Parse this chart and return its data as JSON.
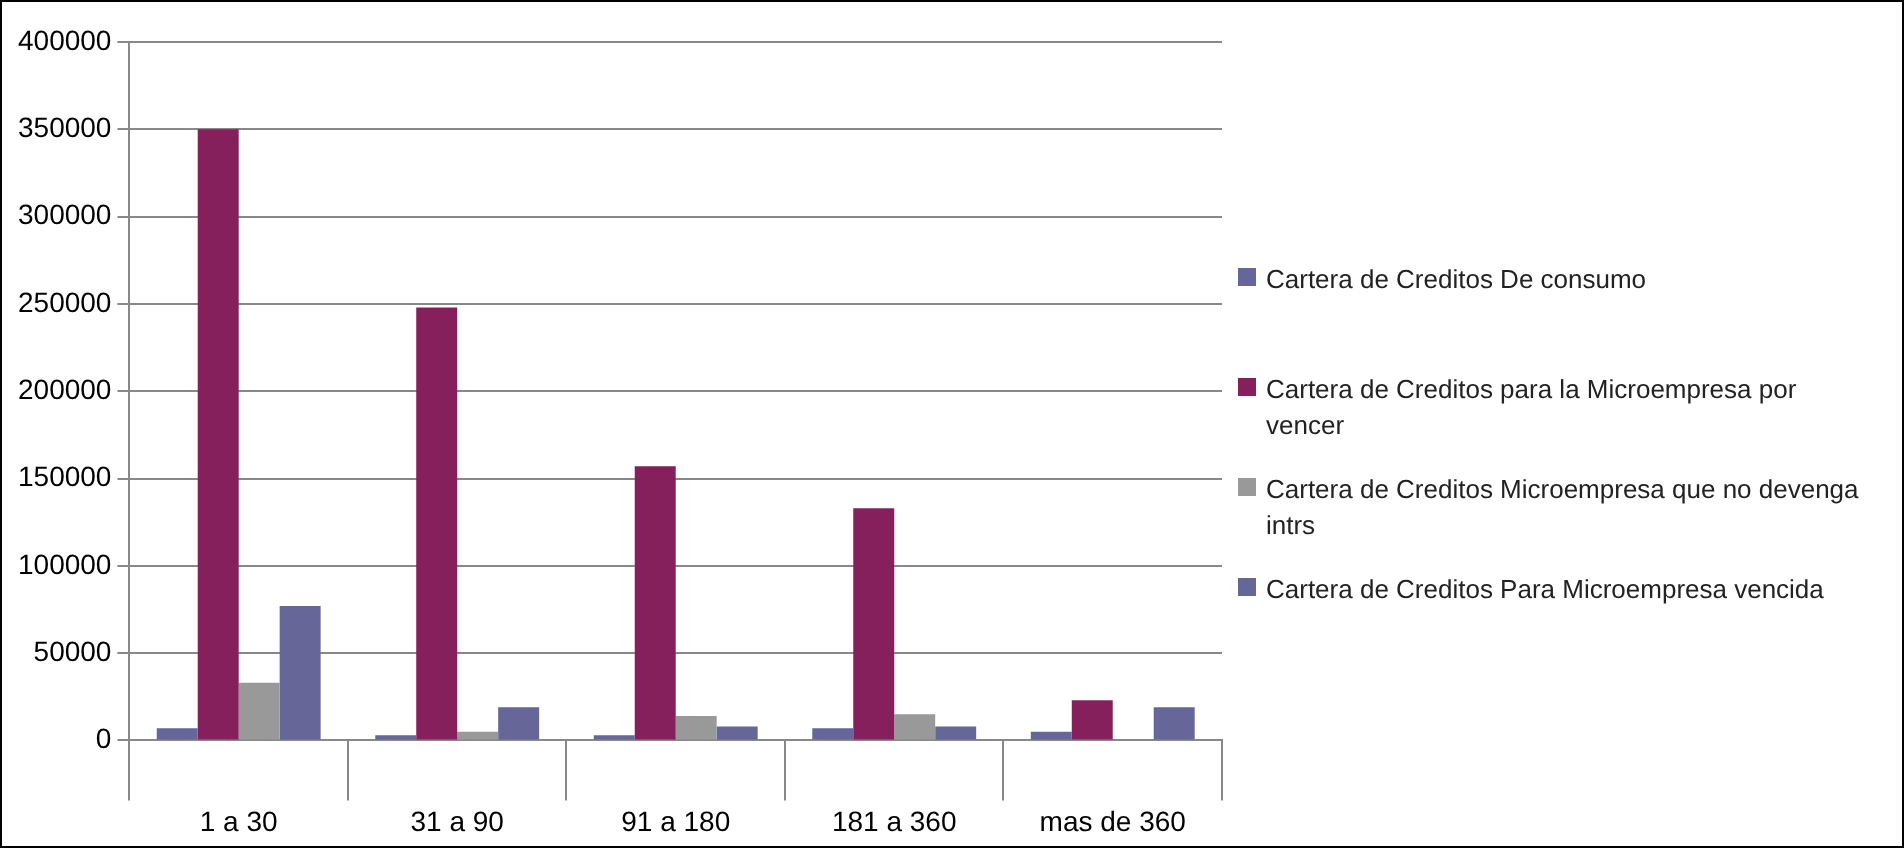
{
  "chart_data": {
    "type": "bar",
    "categories": [
      "1 a 30",
      "31 a 90",
      "91 a 180",
      "181 a 360",
      "mas de 360"
    ],
    "series": [
      {
        "name": "Cartera de Creditos De consumo",
        "color": "#66669a",
        "values": [
          7000,
          3000,
          3000,
          7000,
          5000
        ]
      },
      {
        "name": "Cartera de Creditos para la Microempresa por vencer",
        "color": "#85205d",
        "values": [
          350000,
          248000,
          157000,
          133000,
          23000
        ]
      },
      {
        "name": "Cartera de Creditos Microempresa que no devenga intrs",
        "color": "#999999",
        "values": [
          33000,
          5000,
          14000,
          15000,
          null
        ]
      },
      {
        "name": "Cartera de Creditos Para Microempresa vencida",
        "color": "#666699",
        "values": [
          77000,
          19000,
          8000,
          8000,
          19000
        ]
      }
    ],
    "ylim": [
      0,
      400000
    ],
    "yticks": [
      0,
      50000,
      100000,
      150000,
      200000,
      250000,
      300000,
      350000,
      400000
    ],
    "grid": "y",
    "legend": "right"
  }
}
